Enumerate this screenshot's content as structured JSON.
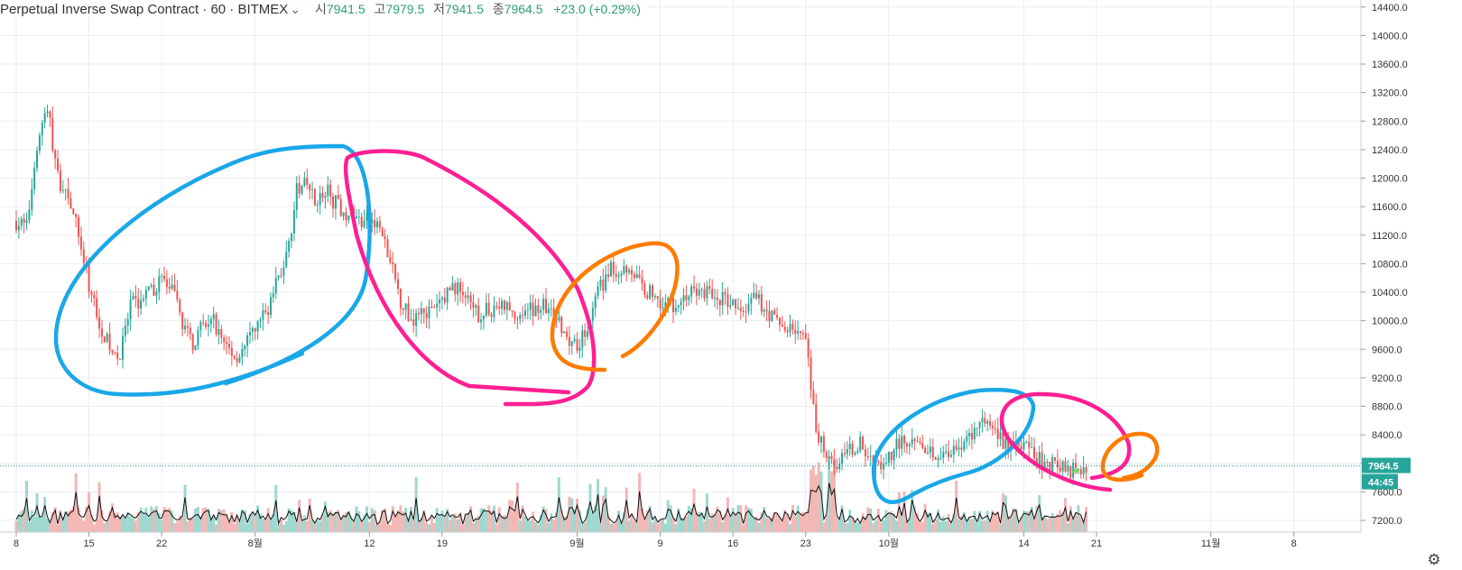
{
  "header": {
    "symbol": "Perpetual Inverse Swap Contract · 60 · BITMEX",
    "caret": "⌄",
    "open_label": "시",
    "open": "7941.5",
    "high_label": "고",
    "high": "7979.5",
    "low_label": "저",
    "low": "7941.5",
    "close_label": "종",
    "close": "7964.5",
    "change": "+23.0 (+0.29%)"
  },
  "colors": {
    "up": "#26a69a",
    "down": "#ef5350",
    "volume_up": "#9fd8cf",
    "volume_down": "#f3b7b5",
    "grid": "#e9edf2",
    "price_badge": "#26a69a",
    "timer_badge": "#26a69a",
    "annotation_blue": "#1aa7e8",
    "annotation_pink": "#ff1f93",
    "annotation_orange": "#ff7b00",
    "signal": "#7ed957"
  },
  "chart_data": {
    "type": "candlestick",
    "interval": "60",
    "exchange": "BITMEX",
    "ylim": [
      7000,
      14500
    ],
    "y_ticks": [
      7200,
      7600,
      8000,
      8400,
      8800,
      9200,
      9600,
      10000,
      10400,
      10800,
      11200,
      11600,
      12000,
      12400,
      12800,
      13200,
      13600,
      14000,
      14400
    ],
    "y_tick_labels": [
      "7200.0",
      "7600.0",
      "8000.0",
      "8400.0",
      "8800.0",
      "9200.0",
      "9600.0",
      "10000.0",
      "10400.0",
      "10800.0",
      "11200.0",
      "11600.0",
      "12000.0",
      "12400.0",
      "12800.0",
      "13200.0",
      "13600.0",
      "14000.0",
      "14400.0"
    ],
    "x_ticks": [
      {
        "day": 0,
        "label": "8"
      },
      {
        "day": 7,
        "label": "15"
      },
      {
        "day": 14,
        "label": "22"
      },
      {
        "day": 23,
        "label": "8월"
      },
      {
        "day": 34,
        "label": "12"
      },
      {
        "day": 41,
        "label": "19"
      },
      {
        "day": 54,
        "label": "9월"
      },
      {
        "day": 62,
        "label": "9"
      },
      {
        "day": 69,
        "label": "16"
      },
      {
        "day": 76,
        "label": "23"
      },
      {
        "day": 84,
        "label": "10월"
      },
      {
        "day": 97,
        "label": "14"
      },
      {
        "day": 104,
        "label": "21"
      },
      {
        "day": 115,
        "label": "11월"
      },
      {
        "day": 123,
        "label": "8"
      }
    ],
    "price_path": [
      [
        0,
        11400
      ],
      [
        1,
        11300
      ],
      [
        2,
        12500
      ],
      [
        3,
        13000
      ],
      [
        4,
        12000
      ],
      [
        5,
        11800
      ],
      [
        6,
        11200
      ],
      [
        7,
        10500
      ],
      [
        8,
        10000
      ],
      [
        9,
        9600
      ],
      [
        10,
        9500
      ],
      [
        11,
        10200
      ],
      [
        12,
        10300
      ],
      [
        13,
        10400
      ],
      [
        14,
        10600
      ],
      [
        15,
        10400
      ],
      [
        16,
        10000
      ],
      [
        17,
        9700
      ],
      [
        18,
        9900
      ],
      [
        19,
        10000
      ],
      [
        20,
        9700
      ],
      [
        21,
        9500
      ],
      [
        22,
        9600
      ],
      [
        23,
        9900
      ],
      [
        24,
        10100
      ],
      [
        25,
        10500
      ],
      [
        26,
        10900
      ],
      [
        27,
        11800
      ],
      [
        28,
        11900
      ],
      [
        29,
        11700
      ],
      [
        30,
        11800
      ],
      [
        31,
        11600
      ],
      [
        32,
        11500
      ],
      [
        33,
        11400
      ],
      [
        34,
        11400
      ],
      [
        35,
        11300
      ],
      [
        36,
        10800
      ],
      [
        37,
        10300
      ],
      [
        38,
        10000
      ],
      [
        39,
        10200
      ],
      [
        40,
        10100
      ],
      [
        41,
        10300
      ],
      [
        42,
        10500
      ],
      [
        43,
        10400
      ],
      [
        44,
        10100
      ],
      [
        45,
        10100
      ],
      [
        46,
        10200
      ],
      [
        47,
        10200
      ],
      [
        48,
        10100
      ],
      [
        49,
        10100
      ],
      [
        50,
        10200
      ],
      [
        51,
        10200
      ],
      [
        52,
        10000
      ],
      [
        53,
        9800
      ],
      [
        54,
        9700
      ],
      [
        55,
        9900
      ],
      [
        56,
        10400
      ],
      [
        57,
        10700
      ],
      [
        58,
        10700
      ],
      [
        59,
        10800
      ],
      [
        60,
        10500
      ],
      [
        61,
        10400
      ],
      [
        62,
        10300
      ],
      [
        63,
        10200
      ],
      [
        64,
        10300
      ],
      [
        65,
        10400
      ],
      [
        66,
        10400
      ],
      [
        67,
        10350
      ],
      [
        68,
        10300
      ],
      [
        69,
        10200
      ],
      [
        70,
        10100
      ],
      [
        71,
        10300
      ],
      [
        72,
        10200
      ],
      [
        73,
        10000
      ],
      [
        74,
        9900
      ],
      [
        75,
        9900
      ],
      [
        76,
        9700
      ],
      [
        77,
        8400
      ],
      [
        78,
        8200
      ],
      [
        79,
        8000
      ],
      [
        80,
        8100
      ],
      [
        81,
        8300
      ],
      [
        82,
        8100
      ],
      [
        83,
        8000
      ],
      [
        84,
        8100
      ],
      [
        85,
        8300
      ],
      [
        86,
        8300
      ],
      [
        87,
        8200
      ],
      [
        88,
        8200
      ],
      [
        89,
        8100
      ],
      [
        90,
        8200
      ],
      [
        91,
        8300
      ],
      [
        92,
        8400
      ],
      [
        93,
        8600
      ],
      [
        94,
        8400
      ],
      [
        95,
        8300
      ],
      [
        96,
        8300
      ],
      [
        97,
        8200
      ],
      [
        98,
        8100
      ],
      [
        99,
        8000
      ],
      [
        100,
        8000
      ],
      [
        101,
        7900
      ],
      [
        102,
        7950
      ],
      [
        103,
        7964
      ]
    ],
    "last_price": "7964.5",
    "candle_timer": "44:45",
    "volume_series": true
  }
}
